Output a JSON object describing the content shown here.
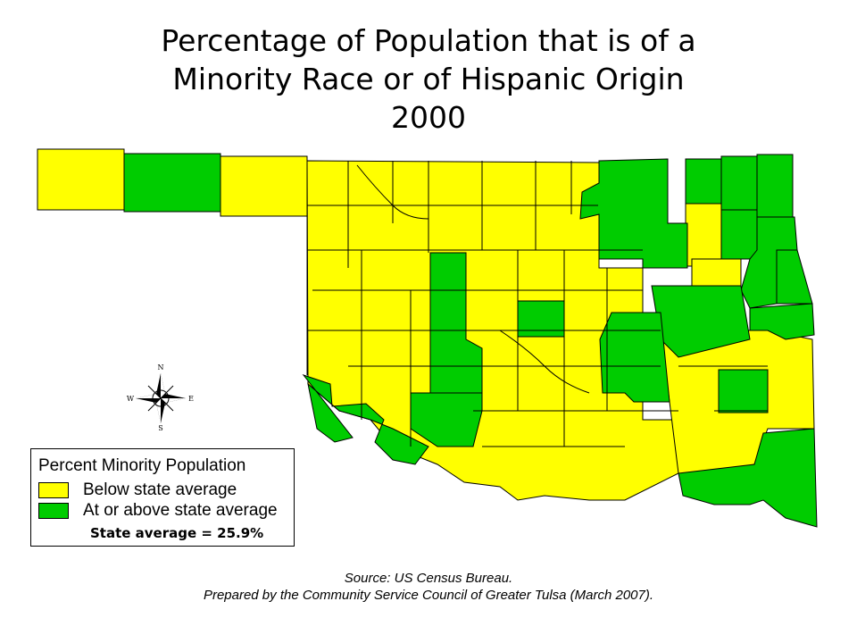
{
  "title": {
    "line1": "Percentage of Population that is of a",
    "line2": "Minority Race or of Hispanic Origin",
    "line3": "2000"
  },
  "compass": {
    "n": "N",
    "s": "S",
    "e": "E",
    "w": "W"
  },
  "legend": {
    "title": "Percent Minority Population",
    "items": [
      {
        "label": "Below state average",
        "color": "#ffff00"
      },
      {
        "label": "At or above state average",
        "color": "#00cc00"
      }
    ],
    "state_average": "State average = 25.9%"
  },
  "source": {
    "line1": "Source:  US Census Bureau.",
    "line2": "Prepared by the Community Service Council of Greater Tulsa (March 2007)."
  },
  "colors": {
    "below": "#ffff00",
    "above": "#00cc00",
    "border": "#000000"
  }
}
